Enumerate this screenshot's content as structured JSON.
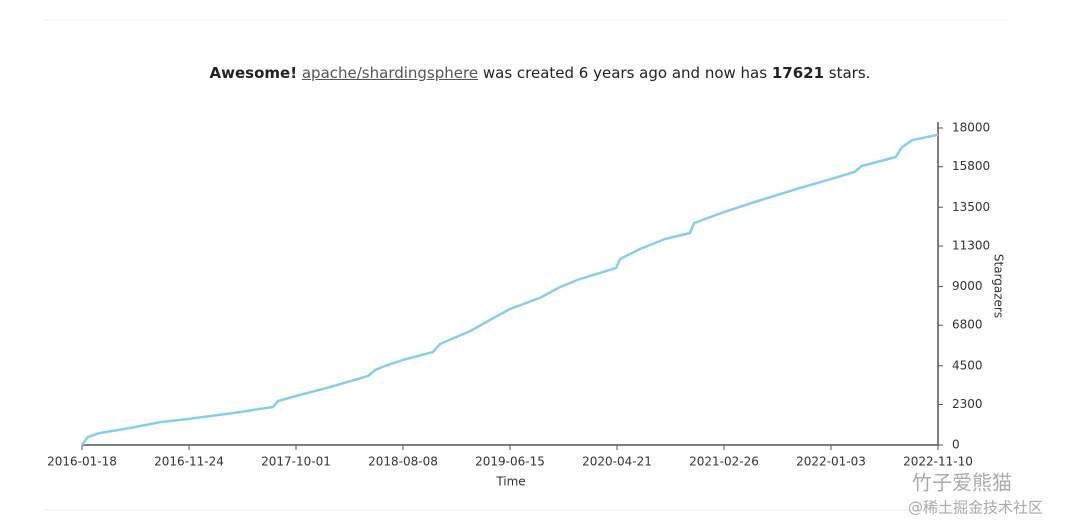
{
  "chart_data": {
    "type": "line",
    "title": {
      "lead": "Awesome!",
      "repo": "apache/shardingsphere",
      "text": "was created 6 years ago and now has",
      "stars": 17621,
      "unit": "stars."
    },
    "x_label": "Time",
    "y_label": "Stargazers",
    "x": [
      "2016-01-18",
      "2016-02-04",
      "2016-03-10",
      "2016-06-06",
      "2016-09-01",
      "2016-11-24",
      "2017-04-21",
      "2017-07-26",
      "2017-08-10",
      "2017-10-01",
      "2018-01-08",
      "2018-04-28",
      "2018-05-19",
      "2018-06-17",
      "2018-08-08",
      "2018-11-03",
      "2018-11-24",
      "2019-02-19",
      "2019-04-18",
      "2019-06-15",
      "2019-09-10",
      "2019-11-08",
      "2020-01-05",
      "2020-03-03",
      "2020-04-18",
      "2020-04-30",
      "2020-06-27",
      "2020-09-08",
      "2020-11-19",
      "2020-12-01",
      "2021-02-26",
      "2021-05-26",
      "2021-10-04",
      "2022-01-03",
      "2022-03-12",
      "2022-04-02",
      "2022-07-10",
      "2022-07-28",
      "2022-08-26",
      "2022-11-10"
    ],
    "values": [
      0,
      450,
      680,
      965,
      1300,
      1480,
      1870,
      2160,
      2500,
      2780,
      3290,
      3920,
      4260,
      4490,
      4830,
      5280,
      5740,
      6470,
      7100,
      7720,
      8350,
      8970,
      9430,
      9770,
      10050,
      10560,
      11130,
      11700,
      12040,
      12600,
      13230,
      13800,
      14590,
      15100,
      15500,
      15840,
      16350,
      16910,
      17300,
      17621
    ],
    "color": "#87ceeb",
    "xlim": [
      "2016-01-18",
      "2022-11-10"
    ],
    "xticks": [
      "2016-01-18",
      "2016-11-24",
      "2017-10-01",
      "2018-08-08",
      "2019-06-15",
      "2020-04-21",
      "2021-02-26",
      "2022-01-03",
      "2022-11-10"
    ],
    "ylim": [
      0,
      18000
    ],
    "yticks": [
      0,
      2300,
      4500,
      6800,
      9000,
      11300,
      13500,
      15800,
      18000
    ],
    "watermark": [
      "竹子爱熊猫",
      "@稀土掘金技术社区"
    ]
  }
}
